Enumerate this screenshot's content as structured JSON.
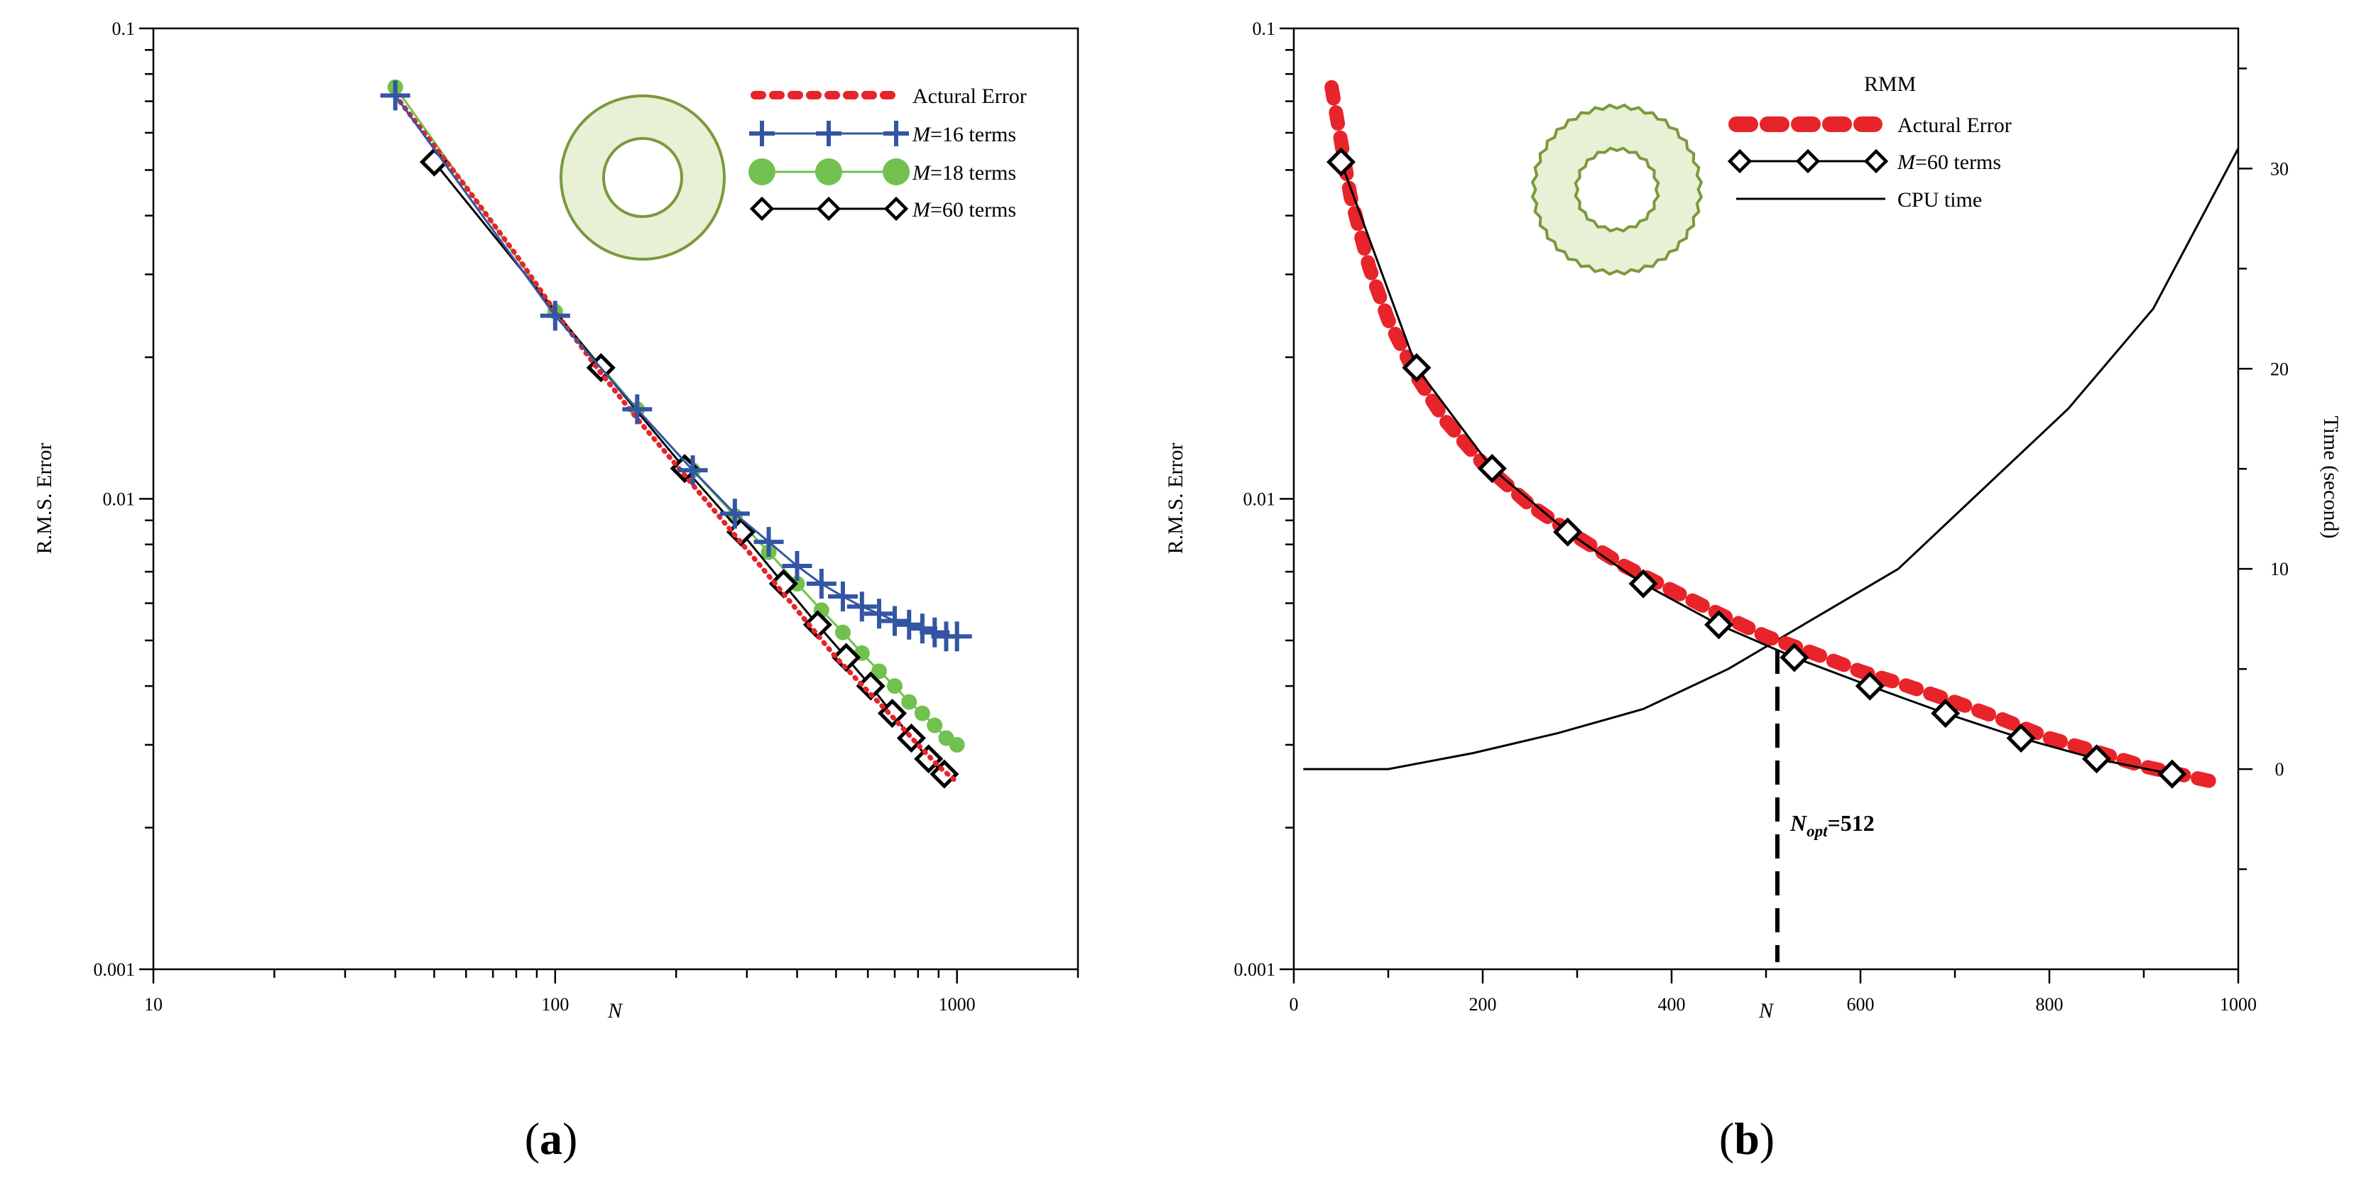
{
  "chart_data": [
    {
      "panel": "(a)",
      "panel_label_parts": [
        "(",
        "a",
        ")"
      ],
      "type": "line",
      "x_scale": "log",
      "y_scale": "log",
      "xlabel": "N",
      "ylabel": "R.M.S. Error",
      "xlim": [
        10,
        2000
      ],
      "ylim": [
        0.001,
        0.1
      ],
      "x_ticks": [
        10,
        100,
        1000
      ],
      "x_tick_labels": [
        "10",
        "100",
        "1000"
      ],
      "y_ticks": [
        0.001,
        0.01,
        0.1
      ],
      "y_tick_labels": [
        "0.001",
        "0.01",
        "0.1"
      ],
      "inset": "annulus",
      "series": [
        {
          "name": "Actural Error",
          "legend_label": "Actural Error",
          "style": "dotted-red",
          "color": "#e8242b",
          "x": [
            40,
            60,
            80,
            100,
            130,
            160,
            200,
            250,
            300,
            400,
            500,
            600,
            700,
            800,
            900,
            1000
          ],
          "y": [
            0.072,
            0.046,
            0.033,
            0.025,
            0.0185,
            0.0148,
            0.0118,
            0.0094,
            0.0078,
            0.0058,
            0.0046,
            0.0039,
            0.0034,
            0.003,
            0.0027,
            0.0025
          ]
        },
        {
          "name": "M=16 terms",
          "legend_prefix": "M",
          "legend_suffix": "=16 terms",
          "style": "plus-blue",
          "color": "#3355a4",
          "x": [
            40,
            100,
            160,
            220,
            280,
            340,
            400,
            460,
            520,
            580,
            640,
            700,
            760,
            820,
            880,
            940,
            1000
          ],
          "y": [
            0.072,
            0.0245,
            0.0155,
            0.0115,
            0.0093,
            0.0081,
            0.0072,
            0.0066,
            0.0062,
            0.0059,
            0.0057,
            0.0055,
            0.0054,
            0.0053,
            0.0052,
            0.0051,
            0.0051
          ]
        },
        {
          "name": "M=18 terms",
          "legend_prefix": "M",
          "legend_suffix": "=18 terms",
          "style": "dot-green",
          "color": "#72c14f",
          "x": [
            40,
            100,
            160,
            220,
            280,
            340,
            400,
            460,
            520,
            580,
            640,
            700,
            760,
            820,
            880,
            940,
            1000
          ],
          "y": [
            0.075,
            0.025,
            0.0155,
            0.0115,
            0.0092,
            0.0077,
            0.0066,
            0.0058,
            0.0052,
            0.0047,
            0.0043,
            0.004,
            0.0037,
            0.0035,
            0.0033,
            0.0031,
            0.003
          ]
        },
        {
          "name": "M=60 terms",
          "legend_prefix": "M",
          "legend_suffix": "=60 terms",
          "style": "diamond-black",
          "color": "#000000",
          "x": [
            50,
            130,
            210,
            290,
            370,
            450,
            530,
            610,
            690,
            770,
            850,
            930
          ],
          "y": [
            0.052,
            0.019,
            0.0116,
            0.0085,
            0.0066,
            0.0054,
            0.0046,
            0.004,
            0.0035,
            0.0031,
            0.0028,
            0.0026
          ]
        }
      ]
    },
    {
      "panel": "(b)",
      "panel_label_parts": [
        "(",
        "b",
        ")"
      ],
      "type": "line",
      "x_scale": "linear",
      "y_scale": "log",
      "xlabel": "N",
      "ylabel": "R.M.S. Error",
      "y2label": "Time (second)",
      "xlim": [
        0,
        1000
      ],
      "ylim": [
        0.001,
        0.1
      ],
      "y2lim": [
        -10,
        37
      ],
      "x_ticks": [
        0,
        200,
        400,
        600,
        800,
        1000
      ],
      "x_tick_labels": [
        "0",
        "200",
        "400",
        "600",
        "800",
        "1000"
      ],
      "y_ticks": [
        0.001,
        0.01,
        0.1
      ],
      "y_tick_labels": [
        "0.001",
        "0.01",
        "0.1"
      ],
      "y2_ticks": [
        0,
        10,
        20,
        30
      ],
      "y2_tick_labels": [
        "0",
        "10",
        "20",
        "30"
      ],
      "legend_title": "RMM",
      "inset": "annulus-rough",
      "annotation": {
        "prefix": "N",
        "subscript": "opt",
        "suffix": "=512",
        "x": 512
      },
      "series": [
        {
          "name": "Actural Error",
          "legend_label": "Actural Error",
          "style": "dashed-red",
          "color": "#e8242b",
          "x": [
            40,
            60,
            80,
            100,
            130,
            160,
            200,
            250,
            300,
            350,
            400,
            450,
            500,
            550,
            600,
            650,
            700,
            750,
            800,
            850,
            900,
            975
          ],
          "y": [
            0.075,
            0.044,
            0.031,
            0.024,
            0.0182,
            0.0147,
            0.0119,
            0.0097,
            0.0083,
            0.0072,
            0.0064,
            0.0057,
            0.0051,
            0.0047,
            0.0043,
            0.004,
            0.0037,
            0.0034,
            0.0031,
            0.0029,
            0.0027,
            0.0025
          ]
        },
        {
          "name": "M=60 terms",
          "legend_prefix": "M",
          "legend_suffix": "=60 terms",
          "style": "diamond-black-line",
          "color": "#000000",
          "x": [
            50,
            130,
            210,
            290,
            370,
            450,
            530,
            610,
            690,
            770,
            850,
            930
          ],
          "y": [
            0.052,
            0.019,
            0.0116,
            0.0085,
            0.0066,
            0.0054,
            0.0046,
            0.004,
            0.0035,
            0.0031,
            0.0028,
            0.0026
          ]
        },
        {
          "name": "CPU time",
          "legend_label": "CPU time",
          "style": "solid-black",
          "axis": "y2",
          "color": "#000000",
          "x": [
            10,
            100,
            190,
            280,
            370,
            460,
            550,
            640,
            730,
            820,
            910,
            1000
          ],
          "y": [
            0,
            0,
            0.8,
            1.8,
            3,
            5,
            7.5,
            10,
            14,
            18,
            23,
            31
          ]
        }
      ]
    }
  ]
}
